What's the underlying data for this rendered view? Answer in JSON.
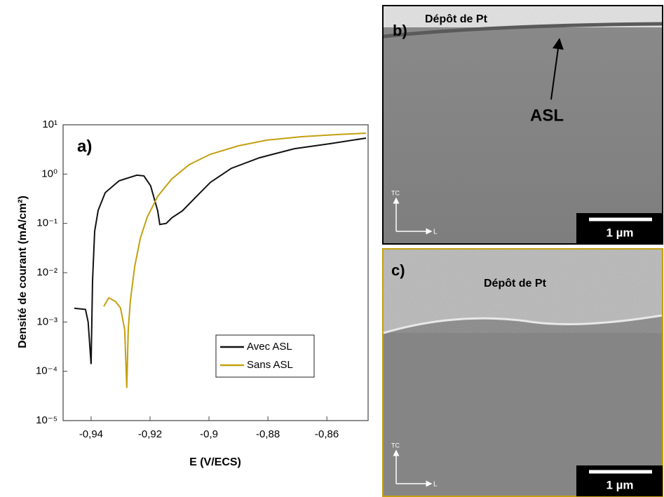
{
  "chart_data": {
    "type": "line",
    "panel_label": "a)",
    "xlabel": "E (V/ECS)",
    "ylabel": "Densité de courant (mA/cm²)",
    "xlim": [
      -0.9495,
      -0.846
    ],
    "ylim": [
      1e-05,
      10
    ],
    "yscale": "log",
    "xticks": [
      {
        "value": -0.94,
        "label": "-0,94"
      },
      {
        "value": -0.92,
        "label": "-0,92"
      },
      {
        "value": -0.9,
        "label": "-0,9"
      },
      {
        "value": -0.88,
        "label": "-0,88"
      },
      {
        "value": -0.86,
        "label": "-0,86"
      }
    ],
    "yticks": [
      {
        "value": 1e-05,
        "label": "10⁻⁵"
      },
      {
        "value": 0.0001,
        "label": "10⁻⁴"
      },
      {
        "value": 0.001,
        "label": "10⁻³"
      },
      {
        "value": 0.01,
        "label": "10⁻²"
      },
      {
        "value": 0.1,
        "label": "10⁻¹"
      },
      {
        "value": 1,
        "label": "10⁰"
      },
      {
        "value": 10,
        "label": "10¹"
      }
    ],
    "legend": "lower-right",
    "series": [
      {
        "name": "Avec ASL",
        "color": "#111111",
        "x": [
          -0.9457,
          -0.9419,
          -0.941,
          -0.94,
          -0.9395,
          -0.9388,
          -0.9376,
          -0.9352,
          -0.9305,
          -0.9245,
          -0.9221,
          -0.9198,
          -0.9174,
          -0.9167,
          -0.9145,
          -0.9126,
          -0.909,
          -0.9043,
          -0.8995,
          -0.8924,
          -0.8829,
          -0.871,
          -0.859,
          -0.8467
        ],
        "values": [
          0.0019,
          0.0018,
          0.001,
          0.00014,
          0.0069,
          0.069,
          0.184,
          0.42,
          0.73,
          0.95,
          0.92,
          0.58,
          0.18,
          0.095,
          0.1,
          0.13,
          0.18,
          0.35,
          0.68,
          1.31,
          2.14,
          3.28,
          4.13,
          5.37
        ]
      },
      {
        "name": "Sans ASL",
        "color": "#c4a010",
        "x": [
          -0.9357,
          -0.934,
          -0.9317,
          -0.93,
          -0.9286,
          -0.9279,
          -0.9274,
          -0.9267,
          -0.9252,
          -0.9233,
          -0.921,
          -0.9174,
          -0.9126,
          -0.9067,
          -0.8995,
          -0.89,
          -0.8805,
          -0.8686,
          -0.8567,
          -0.8467
        ],
        "values": [
          0.00207,
          0.0031,
          0.0026,
          0.0019,
          0.0007,
          4.6e-05,
          0.0007,
          0.0026,
          0.0134,
          0.0497,
          0.132,
          0.354,
          0.8,
          1.55,
          2.53,
          3.74,
          4.86,
          5.73,
          6.32,
          6.75
        ]
      }
    ]
  },
  "panels": [
    {
      "label": "b)",
      "deposit": "Dépôt de Pt",
      "annotation": "ASL",
      "axis_tc": "TC",
      "axis_l": "L",
      "scale_bar": "1 µm"
    },
    {
      "label": "c)",
      "deposit": "Dépôt de Pt",
      "axis_tc": "TC",
      "axis_l": "L",
      "scale_bar": "1 µm"
    }
  ]
}
